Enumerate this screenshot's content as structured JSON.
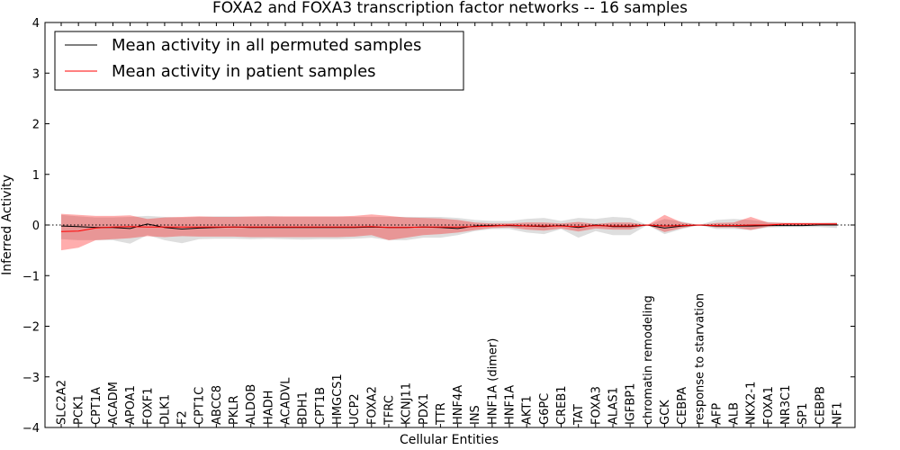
{
  "chart_data": {
    "type": "line",
    "title": "FOXA2 and FOXA3 transcription factor networks -- 16 samples",
    "xlabel": "Cellular Entities",
    "ylabel": "Inferred Activity",
    "ylim": [
      -4,
      4
    ],
    "yticks": [
      -4,
      -3,
      -2,
      -1,
      0,
      1,
      2,
      3,
      4
    ],
    "ytick_labels": [
      "−4",
      "−3",
      "−2",
      "−1",
      "0",
      "1",
      "2",
      "3",
      "4"
    ],
    "grid": false,
    "legend_position": "top-left",
    "reference_line": 0,
    "categories": [
      "SLC2A2",
      "PCK1",
      "CPT1A",
      "ACADM",
      "APOA1",
      "FOXF1",
      "DLK1",
      "F2",
      "CPT1C",
      "ABCC8",
      "PKLR",
      "ALDOB",
      "HADH",
      "ACADVL",
      "BDH1",
      "CPT1B",
      "HMGCS1",
      "UCP2",
      "FOXA2",
      "TFRC",
      "KCNJ11",
      "PDX1",
      "TTR",
      "HNF4A",
      "INS",
      "HNF1A (dimer)",
      "HNF1A",
      "AKT1",
      "G6PC",
      "CREB1",
      "TAT",
      "FOXA3",
      "ALAS1",
      "IGFBP1",
      "chromatin remodeling",
      "GCK",
      "CEBPA",
      "response to starvation",
      "AFP",
      "ALB",
      "NKX2-1",
      "FOXA1",
      "NR3C1",
      "SP1",
      "CEBPB",
      "NF1"
    ],
    "series": [
      {
        "name": "Mean activity in all permuted samples",
        "color": "#000000",
        "values": [
          -0.02,
          -0.03,
          -0.05,
          -0.05,
          -0.07,
          0.02,
          -0.05,
          -0.08,
          -0.06,
          -0.05,
          -0.04,
          -0.05,
          -0.05,
          -0.05,
          -0.05,
          -0.05,
          -0.05,
          -0.05,
          -0.04,
          -0.05,
          -0.05,
          -0.04,
          -0.05,
          -0.07,
          -0.02,
          -0.01,
          -0.01,
          -0.02,
          -0.03,
          -0.01,
          -0.05,
          0.0,
          -0.03,
          -0.03,
          0.0,
          -0.06,
          -0.02,
          0.0,
          -0.02,
          -0.02,
          -0.02,
          -0.01,
          -0.01,
          -0.01,
          0.0,
          0.0
        ],
        "band_lower": [
          -0.28,
          -0.3,
          -0.3,
          -0.3,
          -0.37,
          -0.2,
          -0.3,
          -0.36,
          -0.28,
          -0.27,
          -0.27,
          -0.28,
          -0.27,
          -0.28,
          -0.29,
          -0.28,
          -0.28,
          -0.27,
          -0.25,
          -0.3,
          -0.3,
          -0.25,
          -0.25,
          -0.2,
          -0.12,
          -0.08,
          -0.08,
          -0.15,
          -0.18,
          -0.08,
          -0.25,
          -0.12,
          -0.2,
          -0.2,
          0.0,
          -0.18,
          -0.08,
          0.0,
          -0.08,
          -0.08,
          -0.1,
          -0.05,
          -0.04,
          -0.04,
          -0.04,
          -0.06
        ],
        "band_upper": [
          0.2,
          0.17,
          0.15,
          0.15,
          0.16,
          0.18,
          0.16,
          0.15,
          0.16,
          0.17,
          0.17,
          0.16,
          0.17,
          0.16,
          0.16,
          0.16,
          0.16,
          0.16,
          0.16,
          0.16,
          0.16,
          0.16,
          0.16,
          0.14,
          0.1,
          0.08,
          0.08,
          0.12,
          0.14,
          0.08,
          0.14,
          0.12,
          0.16,
          0.14,
          0.0,
          0.12,
          0.07,
          0.0,
          0.1,
          0.12,
          0.1,
          0.06,
          0.04,
          0.04,
          0.04,
          0.05
        ]
      },
      {
        "name": "Mean activity in patient samples",
        "color": "#ff0000",
        "values": [
          -0.13,
          -0.12,
          -0.06,
          -0.04,
          -0.03,
          -0.04,
          -0.04,
          -0.04,
          -0.04,
          -0.04,
          -0.04,
          -0.04,
          -0.04,
          -0.04,
          -0.04,
          -0.04,
          -0.04,
          -0.04,
          -0.03,
          -0.05,
          -0.05,
          -0.04,
          -0.04,
          -0.04,
          -0.03,
          -0.02,
          0.0,
          -0.02,
          -0.02,
          -0.02,
          -0.03,
          -0.01,
          -0.02,
          -0.02,
          0.0,
          -0.02,
          -0.01,
          0.0,
          -0.01,
          -0.01,
          0.0,
          0.0,
          0.02,
          0.02,
          0.02,
          0.02
        ],
        "band_lower": [
          -0.5,
          -0.45,
          -0.3,
          -0.28,
          -0.26,
          -0.22,
          -0.24,
          -0.22,
          -0.23,
          -0.23,
          -0.23,
          -0.24,
          -0.24,
          -0.24,
          -0.24,
          -0.24,
          -0.24,
          -0.23,
          -0.2,
          -0.3,
          -0.25,
          -0.2,
          -0.18,
          -0.15,
          -0.1,
          -0.06,
          -0.05,
          -0.09,
          -0.11,
          -0.07,
          -0.13,
          -0.07,
          -0.09,
          -0.09,
          0.0,
          -0.14,
          -0.06,
          0.0,
          -0.05,
          -0.05,
          -0.1,
          -0.03,
          0.0,
          0.0,
          0.0,
          0.0
        ],
        "band_upper": [
          0.22,
          0.2,
          0.18,
          0.18,
          0.19,
          0.12,
          0.15,
          0.16,
          0.17,
          0.16,
          0.16,
          0.17,
          0.17,
          0.17,
          0.17,
          0.17,
          0.17,
          0.18,
          0.21,
          0.18,
          0.15,
          0.14,
          0.13,
          0.1,
          0.05,
          0.03,
          0.03,
          0.05,
          0.05,
          0.03,
          0.06,
          0.02,
          0.05,
          0.05,
          0.0,
          0.2,
          0.05,
          0.0,
          0.04,
          0.05,
          0.16,
          0.05,
          0.04,
          0.04,
          0.04,
          0.04
        ]
      }
    ]
  }
}
